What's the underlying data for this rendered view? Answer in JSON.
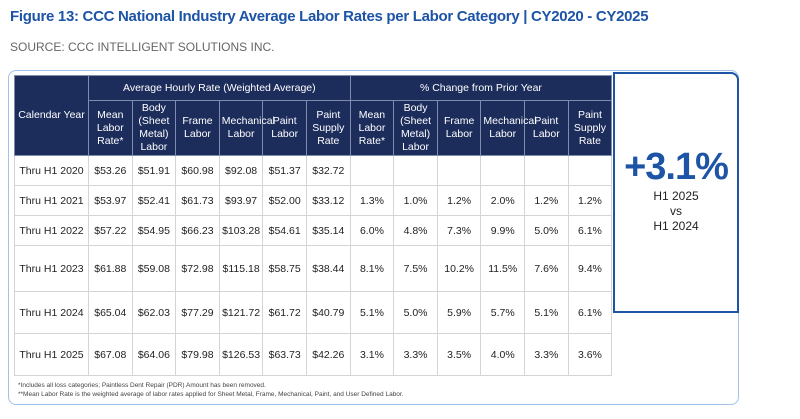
{
  "header": {
    "title": "Figure 13: CCC National Industry Average Labor Rates per Labor Category | CY2020 - CY2025",
    "source": "SOURCE: CCC INTELLIGENT SOLUTIONS INC."
  },
  "table": {
    "year_header": "Calendar Year",
    "group_headers": [
      "Average Hourly Rate (Weighted Average)",
      "% Change from Prior Year"
    ],
    "rate_columns": [
      "Mean Labor Rate*",
      "Body (Sheet Metal) Labor",
      "Frame Labor",
      "Mechanical Labor",
      "Paint Labor",
      "Paint Supply Rate"
    ],
    "change_columns": [
      "Mean Labor Rate*",
      "Body (Sheet Metal) Labor",
      "Frame Labor",
      "Mechanical Labor",
      "Paint Labor",
      "Paint Supply Rate"
    ],
    "rows": [
      {
        "year": "Thru H1 2020",
        "rates": [
          "$53.26",
          "$51.91",
          "$60.98",
          "$92.08",
          "$51.37",
          "$32.72"
        ],
        "changes": []
      },
      {
        "year": "Thru H1 2021",
        "rates": [
          "$53.97",
          "$52.41",
          "$61.73",
          "$93.97",
          "$52.00",
          "$33.12"
        ],
        "changes": [
          "1.3%",
          "1.0%",
          "1.2%",
          "2.0%",
          "1.2%",
          "1.2%"
        ]
      },
      {
        "year": "Thru H1 2022",
        "rates": [
          "$57.22",
          "$54.95",
          "$66.23",
          "$103.28",
          "$54.61",
          "$35.14"
        ],
        "changes": [
          "6.0%",
          "4.8%",
          "7.3%",
          "9.9%",
          "5.0%",
          "6.1%"
        ]
      },
      {
        "year": "Thru H1 2023",
        "rates": [
          "$61.88",
          "$59.08",
          "$72.98",
          "$115.18",
          "$58.75",
          "$38.44"
        ],
        "changes": [
          "8.1%",
          "7.5%",
          "10.2%",
          "11.5%",
          "7.6%",
          "9.4%"
        ]
      },
      {
        "year": "Thru H1 2024",
        "rates": [
          "$65.04",
          "$62.03",
          "$77.29",
          "$121.72",
          "$61.72",
          "$40.79"
        ],
        "changes": [
          "5.1%",
          "5.0%",
          "5.9%",
          "5.7%",
          "5.1%",
          "6.1%"
        ]
      },
      {
        "year": "Thru H1 2025",
        "rates": [
          "$67.08",
          "$64.06",
          "$79.98",
          "$126.53",
          "$63.73",
          "$42.26"
        ],
        "changes": [
          "3.1%",
          "3.3%",
          "3.5%",
          "4.0%",
          "3.3%",
          "3.6%"
        ]
      }
    ],
    "footnotes": [
      "*Includes all loss categories; Paintless Dent Repair (PDR) Amount has been removed.",
      "**Mean Labor Rate is the weighted average of labor rates applied for Sheet Metal, Frame, Mechanical, Paint, and User Defined Labor."
    ]
  },
  "callout": {
    "value": "+3.1%",
    "line1": "H1 2025",
    "line2": "vs",
    "line3": "H1 2024"
  }
}
